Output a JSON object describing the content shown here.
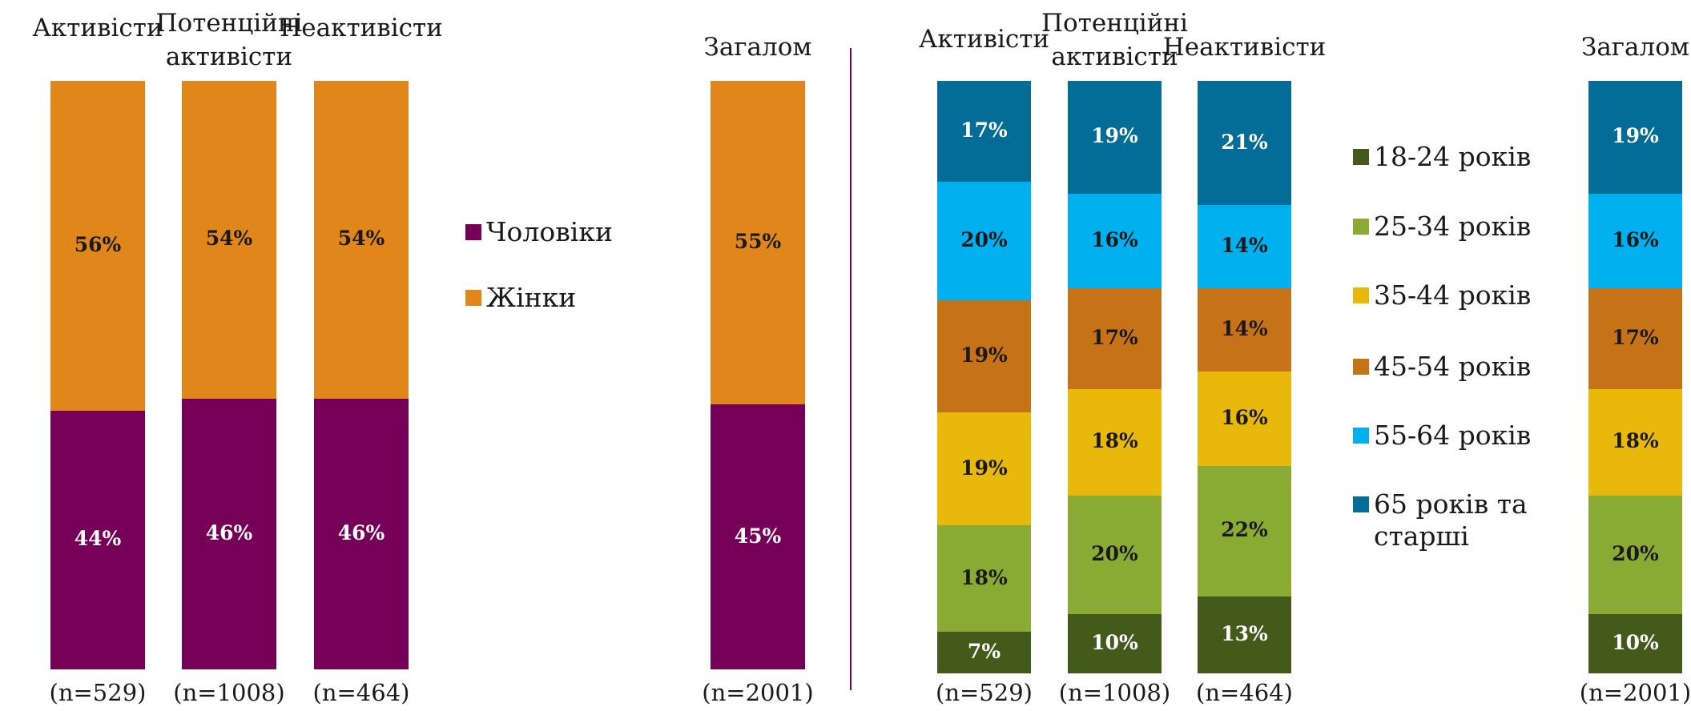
{
  "chart_data": [
    {
      "type": "stacked_bar",
      "categories": [
        "Активісти",
        "Потенційні активісти",
        "Неактивісти",
        "Загалом"
      ],
      "sample_sizes": [
        "(n=529)",
        "(n=1008)",
        "(n=464)",
        "(n=2001)"
      ],
      "ylim": [
        0,
        100
      ],
      "series": [
        {
          "name": "Чоловіки",
          "color": "#760058",
          "label_color": "#ffffff",
          "values": [
            44,
            46,
            46,
            45
          ],
          "value_labels": [
            "44%",
            "46%",
            "46%",
            "45%"
          ]
        },
        {
          "name": "Жінки",
          "color": "#e0861a",
          "label_color": "#1a1a1a",
          "values": [
            56,
            54,
            54,
            55
          ],
          "value_labels": [
            "56%",
            "54%",
            "54%",
            "55%"
          ]
        }
      ]
    },
    {
      "type": "stacked_bar",
      "categories": [
        "Активісти",
        "Потенційні активісти",
        "Неактивісти",
        "Загалом"
      ],
      "sample_sizes": [
        "(n=529)",
        "(n=1008)",
        "(n=464)",
        "(n=2001)"
      ],
      "ylim": [
        0,
        100
      ],
      "series": [
        {
          "name": "18-24 років",
          "color": "#445a1b",
          "label_color": "#ffffff",
          "values": [
            7,
            10,
            13,
            10
          ],
          "value_labels": [
            "7%",
            "10%",
            "13%",
            "10%"
          ]
        },
        {
          "name": "25-34 років",
          "color": "#8aab33",
          "label_color": "#1a1a1a",
          "values": [
            18,
            20,
            22,
            20
          ],
          "value_labels": [
            "18%",
            "20%",
            "22%",
            "20%"
          ]
        },
        {
          "name": "35-44 років",
          "color": "#e8b80b",
          "label_color": "#1a1a1a",
          "values": [
            19,
            18,
            16,
            18
          ],
          "value_labels": [
            "19%",
            "18%",
            "16%",
            "18%"
          ]
        },
        {
          "name": "45-54 років",
          "color": "#c67318",
          "label_color": "#1a1a1a",
          "values": [
            19,
            17,
            14,
            17
          ],
          "value_labels": [
            "19%",
            "17%",
            "14%",
            "17%"
          ]
        },
        {
          "name": "55-64 років",
          "color": "#00b0ef",
          "label_color": "#1a1a1a",
          "values": [
            20,
            16,
            14,
            16
          ],
          "value_labels": [
            "20%",
            "16%",
            "14%",
            "16%"
          ]
        },
        {
          "name": "65 років та старші",
          "color": "#036d98",
          "label_color": "#ffffff",
          "values": [
            17,
            19,
            21,
            19
          ],
          "value_labels": [
            "17%",
            "19%",
            "21%",
            "19%"
          ]
        }
      ]
    }
  ]
}
